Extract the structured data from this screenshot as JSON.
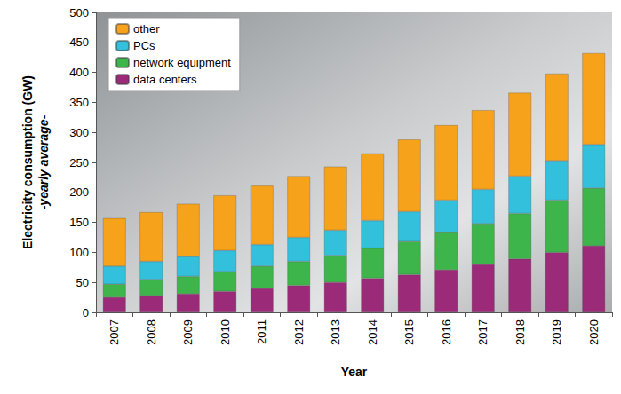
{
  "chart_data": {
    "type": "bar",
    "stacked": true,
    "x_label": "Year",
    "y_label": "Electricity consumption (GW)",
    "y_sublabel": "-yearly average-",
    "categories": [
      "2007",
      "2008",
      "2009",
      "2010",
      "2011",
      "2012",
      "2013",
      "2014",
      "2015",
      "2016",
      "2017",
      "2018",
      "2019",
      "2020"
    ],
    "series": [
      {
        "name": "data centers",
        "color": "#9b2a78",
        "values": [
          25,
          28,
          31,
          35,
          40,
          45,
          50,
          57,
          63,
          71,
          80,
          89,
          100,
          111
        ]
      },
      {
        "name": "network equipment",
        "color": "#3db54a",
        "values": [
          22,
          27,
          29,
          33,
          37,
          40,
          45,
          50,
          55,
          62,
          68,
          76,
          87,
          96
        ]
      },
      {
        "name": "PCs",
        "color": "#33c0dc",
        "values": [
          30,
          30,
          33,
          35,
          36,
          40,
          42,
          46,
          50,
          54,
          57,
          62,
          66,
          73
        ]
      },
      {
        "name": "other",
        "color": "#f7a21b",
        "values": [
          80,
          82,
          88,
          92,
          98,
          102,
          106,
          112,
          120,
          125,
          132,
          139,
          145,
          152
        ]
      }
    ],
    "ylim": [
      0,
      500
    ],
    "yticks": [
      0,
      50,
      100,
      150,
      200,
      250,
      300,
      350,
      400,
      450,
      500
    ],
    "grid": false,
    "legend": "top-left"
  }
}
